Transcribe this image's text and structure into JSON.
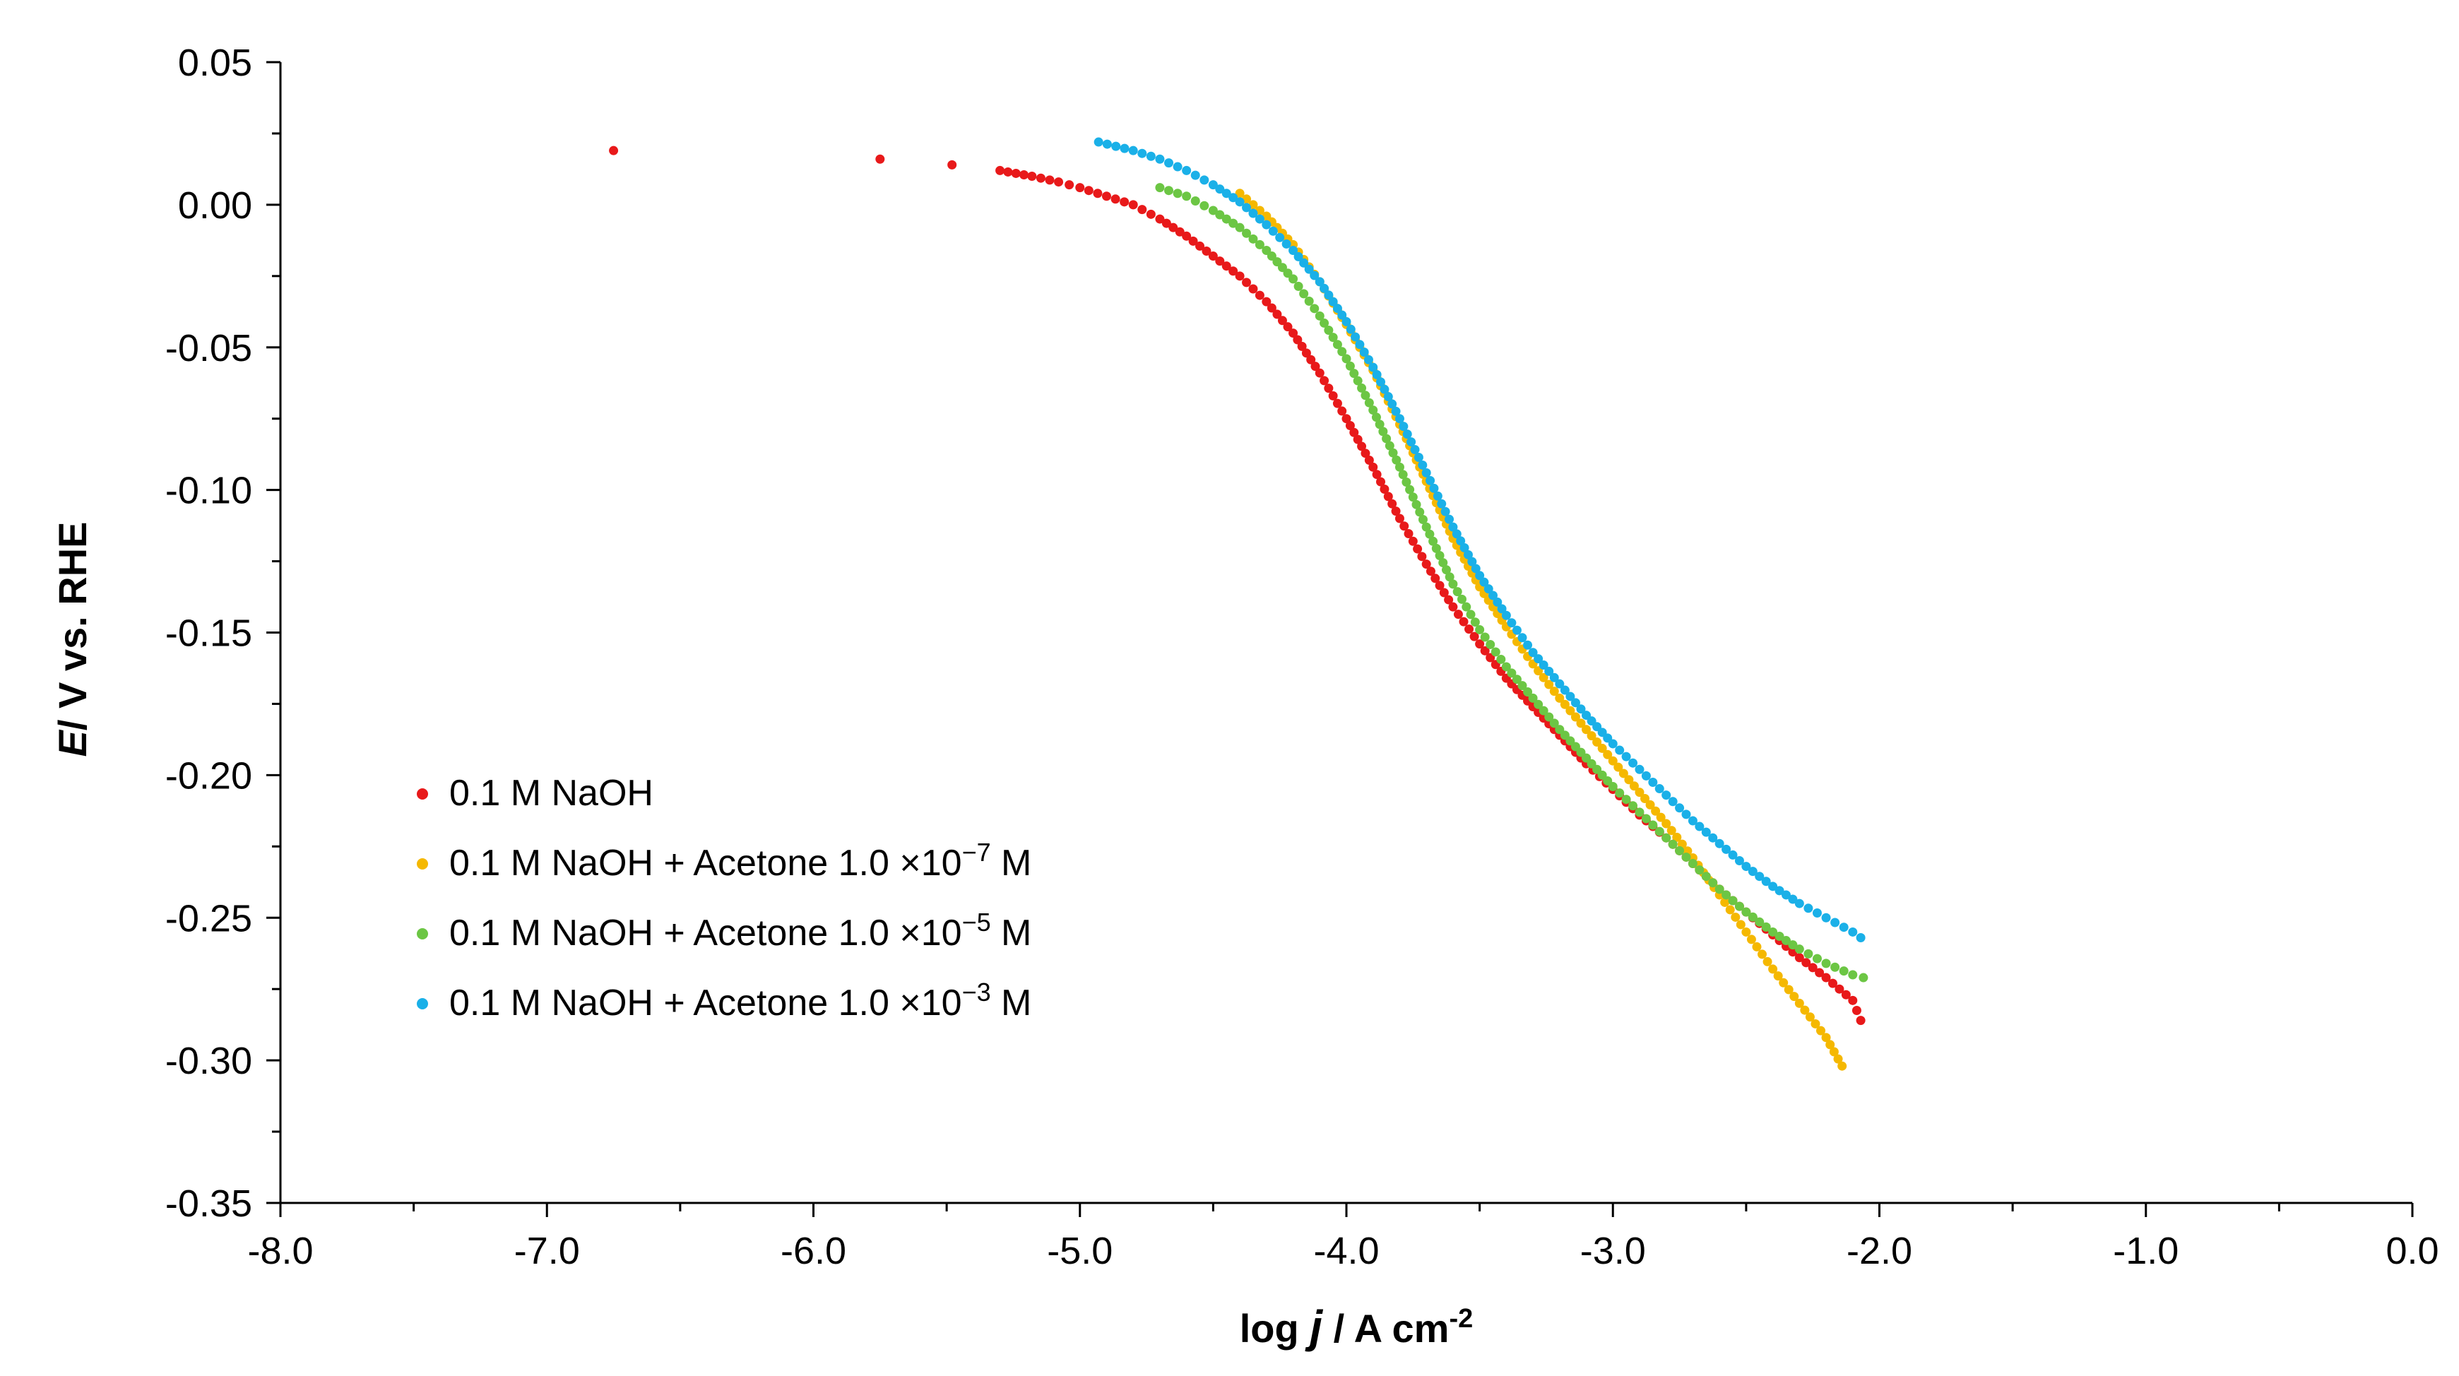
{
  "chart_data": {
    "type": "scatter",
    "title": "",
    "xlabel": {
      "prefix": "log ",
      "italic": "j",
      "suffix": " / A cm",
      "sup": "-2"
    },
    "ylabel": {
      "italic": "E",
      "rest": "/ V vs. RHE"
    },
    "xlim": [
      -8.0,
      0.0
    ],
    "ylim": [
      -0.35,
      0.05
    ],
    "x_ticks": [
      -8.0,
      -7.0,
      -6.0,
      -5.0,
      -4.0,
      -3.0,
      -2.0,
      -1.0,
      0.0
    ],
    "x_tick_labels": [
      "-8.0",
      "-7.0",
      "-6.0",
      "-5.0",
      "-4.0",
      "-3.0",
      "-2.0",
      "-1.0",
      "0.0"
    ],
    "y_ticks": [
      0.05,
      0.0,
      -0.05,
      -0.1,
      -0.15,
      -0.2,
      -0.25,
      -0.3,
      -0.35
    ],
    "y_tick_labels": [
      "0.05",
      "0.00",
      "-0.05",
      "-0.10",
      "-0.15",
      "-0.20",
      "-0.25",
      "-0.30",
      "-0.35"
    ],
    "grid": false,
    "legend_position": "lower-left",
    "series": [
      {
        "name": "0.1 M NaOH",
        "label_parts": {
          "base": "0.1 M NaOH",
          "exp": ""
        },
        "color": "#E8191A",
        "x": [
          -6.75,
          -5.75,
          -5.48,
          -5.3,
          -5.18,
          -5.08,
          -5.0,
          -4.9,
          -4.8,
          -4.7,
          -4.6,
          -4.5,
          -4.4,
          -4.3,
          -4.2,
          -4.1,
          -4.0,
          -3.9,
          -3.8,
          -3.7,
          -3.6,
          -3.5,
          -3.4,
          -3.3,
          -3.2,
          -3.1,
          -3.0,
          -2.9,
          -2.8,
          -2.7,
          -2.6,
          -2.5,
          -2.4,
          -2.3,
          -2.2,
          -2.1,
          -2.07
        ],
        "y": [
          0.019,
          0.016,
          0.014,
          0.012,
          0.01,
          0.008,
          0.006,
          0.003,
          0.0,
          -0.005,
          -0.011,
          -0.018,
          -0.025,
          -0.034,
          -0.045,
          -0.059,
          -0.075,
          -0.092,
          -0.11,
          -0.126,
          -0.141,
          -0.154,
          -0.166,
          -0.176,
          -0.186,
          -0.196,
          -0.205,
          -0.214,
          -0.222,
          -0.231,
          -0.24,
          -0.248,
          -0.256,
          -0.264,
          -0.271,
          -0.279,
          -0.286
        ]
      },
      {
        "name": "0.1 M NaOH + Acetone 1.0 ×10−7 M",
        "label_parts": {
          "base": "0.1 M NaOH + Acetone 1.0 ×10",
          "exp": "−7",
          "tail": " M"
        },
        "color": "#F5B800",
        "x": [
          -4.4,
          -4.3,
          -4.2,
          -4.1,
          -4.0,
          -3.9,
          -3.8,
          -3.7,
          -3.6,
          -3.5,
          -3.4,
          -3.3,
          -3.2,
          -3.1,
          -3.0,
          -2.9,
          -2.8,
          -2.7,
          -2.6,
          -2.5,
          -2.4,
          -2.3,
          -2.2,
          -2.14
        ],
        "y": [
          0.004,
          -0.004,
          -0.014,
          -0.027,
          -0.042,
          -0.058,
          -0.077,
          -0.097,
          -0.117,
          -0.134,
          -0.148,
          -0.161,
          -0.173,
          -0.184,
          -0.195,
          -0.206,
          -0.217,
          -0.229,
          -0.242,
          -0.255,
          -0.268,
          -0.28,
          -0.292,
          -0.302
        ]
      },
      {
        "name": "0.1 M NaOH + Acetone 1.0 ×10−5 M",
        "label_parts": {
          "base": "0.1 M NaOH + Acetone 1.0 ×10",
          "exp": "−5",
          "tail": " M"
        },
        "color": "#6CC644",
        "x": [
          -4.7,
          -4.6,
          -4.5,
          -4.4,
          -4.3,
          -4.2,
          -4.1,
          -4.0,
          -3.9,
          -3.8,
          -3.7,
          -3.6,
          -3.5,
          -3.4,
          -3.3,
          -3.2,
          -3.1,
          -3.0,
          -2.9,
          -2.8,
          -2.7,
          -2.6,
          -2.5,
          -2.4,
          -2.3,
          -2.2,
          -2.1,
          -2.06
        ],
        "y": [
          0.006,
          0.003,
          -0.002,
          -0.008,
          -0.016,
          -0.026,
          -0.039,
          -0.054,
          -0.072,
          -0.092,
          -0.113,
          -0.133,
          -0.149,
          -0.162,
          -0.173,
          -0.184,
          -0.194,
          -0.204,
          -0.213,
          -0.222,
          -0.231,
          -0.24,
          -0.248,
          -0.255,
          -0.261,
          -0.266,
          -0.27,
          -0.271
        ]
      },
      {
        "name": "0.1 M NaOH + Acetone 1.0 ×10−3 M",
        "label_parts": {
          "base": "0.1 M NaOH + Acetone 1.0 ×10",
          "exp": "−3",
          "tail": " M"
        },
        "color": "#1AB0E8",
        "x": [
          -4.93,
          -4.8,
          -4.7,
          -4.6,
          -4.5,
          -4.4,
          -4.3,
          -4.2,
          -4.1,
          -4.0,
          -3.9,
          -3.8,
          -3.7,
          -3.6,
          -3.5,
          -3.4,
          -3.3,
          -3.2,
          -3.1,
          -3.0,
          -2.9,
          -2.8,
          -2.7,
          -2.6,
          -2.5,
          -2.4,
          -2.3,
          -2.2,
          -2.1,
          -2.07
        ],
        "y": [
          0.022,
          0.019,
          0.016,
          0.012,
          0.007,
          0.001,
          -0.007,
          -0.016,
          -0.027,
          -0.041,
          -0.057,
          -0.075,
          -0.094,
          -0.113,
          -0.13,
          -0.144,
          -0.157,
          -0.168,
          -0.179,
          -0.189,
          -0.198,
          -0.207,
          -0.216,
          -0.224,
          -0.232,
          -0.239,
          -0.245,
          -0.25,
          -0.255,
          -0.257
        ]
      }
    ]
  }
}
